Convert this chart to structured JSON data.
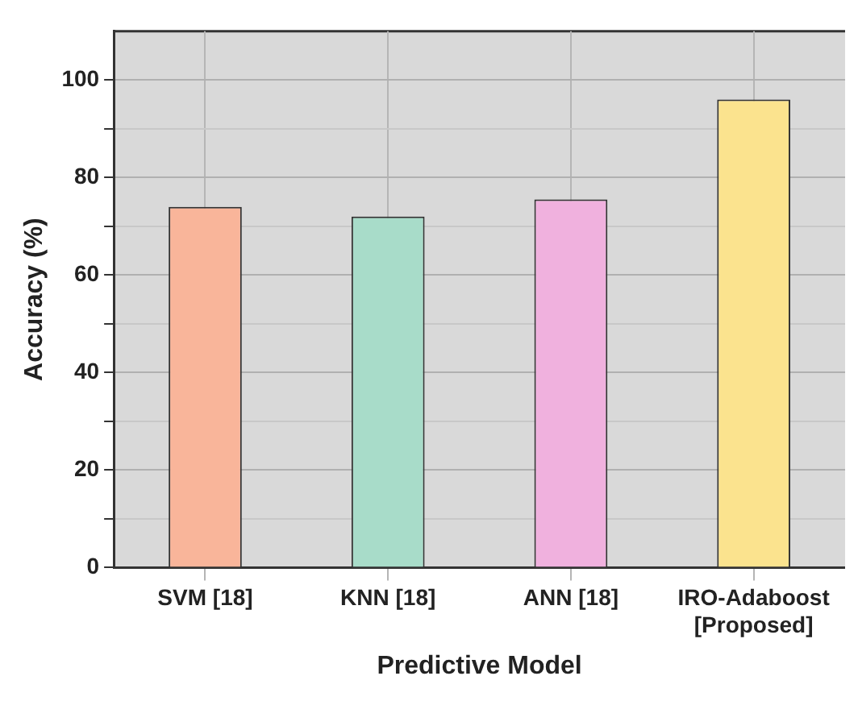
{
  "chart_data": {
    "type": "bar",
    "xlabel": "Predictive Model",
    "ylabel": "Accuracy (%)",
    "categories": [
      "SVM [18]",
      "KNN [18]",
      "ANN [18]",
      "IRO-Adaboost\n[Proposed]"
    ],
    "values": [
      74,
      72,
      75.5,
      96
    ],
    "colors": [
      "#f9b59a",
      "#a8dcc9",
      "#f0b1de",
      "#fbe38e"
    ],
    "ylim": [
      0,
      110
    ],
    "yticks": [
      0,
      {
        "value": 10,
        "label": null
      },
      20,
      {
        "value": 30,
        "label": null
      },
      40,
      {
        "value": 50,
        "label": null
      },
      60,
      {
        "value": 70,
        "label": null
      },
      80,
      {
        "value": 90,
        "label": null
      },
      100
    ],
    "grid": true
  }
}
